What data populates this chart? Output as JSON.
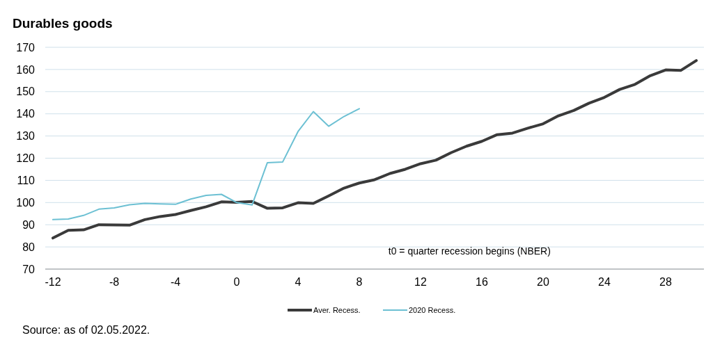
{
  "chart_data": {
    "type": "line",
    "title": "Durables goods",
    "x": [
      -12,
      -11,
      -10,
      -9,
      -8,
      -7,
      -6,
      -5,
      -4,
      -3,
      -2,
      -1,
      0,
      1,
      2,
      3,
      4,
      5,
      6,
      7,
      8,
      9,
      10,
      11,
      12,
      13,
      14,
      15,
      16,
      17,
      18,
      19,
      20,
      21,
      22,
      23,
      24,
      25,
      26,
      27,
      28,
      29,
      30
    ],
    "series": [
      {
        "name": "Aver. Recess.",
        "color": "#3a3a3a",
        "values": [
          84,
          87.5,
          87.7,
          90,
          89.9,
          89.8,
          92.3,
          93.7,
          94.6,
          96.4,
          98.1,
          100.3,
          100.1,
          100.5,
          97.4,
          97.6,
          99.9,
          99.6,
          103,
          106.5,
          108.8,
          110.3,
          113.1,
          115,
          117.5,
          119.1,
          122.5,
          125.4,
          127.6,
          130.6,
          131.3,
          133.5,
          135.5,
          139.1,
          141.5,
          144.8,
          147.4,
          151,
          153.3,
          157.2,
          159.8,
          159.6,
          164
        ]
      },
      {
        "name": "2020 Recess.",
        "color": "#6cc0d3",
        "values": [
          92.3,
          92.6,
          94.2,
          97,
          97.6,
          99,
          99.6,
          99.4,
          99.2,
          101.6,
          103.2,
          103.7,
          100,
          98.9,
          118,
          118.3,
          132,
          141,
          134.4,
          138.8,
          142.3,
          null,
          null,
          null,
          null,
          null,
          null,
          null,
          null,
          null,
          null,
          null,
          null,
          null,
          null,
          null,
          null,
          null,
          null,
          null,
          null,
          null,
          null
        ]
      }
    ],
    "xlim": [
      -12.5,
      30.5
    ],
    "xticks": [
      -12,
      -8,
      -4,
      0,
      4,
      8,
      12,
      16,
      20,
      24,
      28
    ],
    "ylim": [
      70,
      170
    ],
    "yticks": [
      70,
      80,
      90,
      100,
      110,
      120,
      130,
      140,
      150,
      160,
      170
    ],
    "grid": "y",
    "legend": "bottom",
    "marker": "none",
    "line_style": "solid",
    "annotations": [
      "t0 = quarter recession begins (NBER)",
      "Source: as of 02.05.2022."
    ]
  }
}
